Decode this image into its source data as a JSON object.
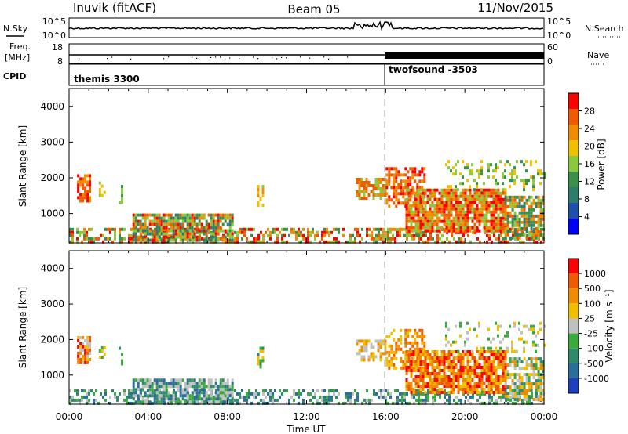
{
  "header": {
    "station": "Inuvik (fitACF)",
    "beam": "Beam 05",
    "date": "11/Nov/2015"
  },
  "strips": {
    "nsky_label": "N.Sky",
    "nsky_ticks": [
      "10^5",
      "10^0"
    ],
    "nsearch_label": "N.Search",
    "freq_label_1": "Freq.",
    "freq_label_2": "[MHz]",
    "freq_ticks": [
      "18",
      "8"
    ],
    "nave_label": "Nave",
    "nave_ticks": [
      "60",
      "0"
    ],
    "cpid_label": "CPID",
    "programs": [
      {
        "name": "themis 3300",
        "start_hour": 0,
        "end_hour": 16
      },
      {
        "name": "twofsound -3503",
        "start_hour": 16,
        "end_hour": 24
      }
    ]
  },
  "colors": {
    "power_scale": [
      "#0000ff",
      "#1f4fa8",
      "#2e7d6a",
      "#3a8f4a",
      "#8cc83c",
      "#f0c000",
      "#f08c00",
      "#f05a00",
      "#ff0000"
    ],
    "velocity_scale": [
      "#1f3fbf",
      "#2a6e9a",
      "#2e8a6a",
      "#3aaa3a",
      "#c0c0c0",
      "#f0c000",
      "#f08c00",
      "#f05a00",
      "#ff0000"
    ]
  },
  "chart_data": [
    {
      "type": "heatmap",
      "name": "power",
      "ylabel": "Slant Range [km]",
      "xlabel": "Time UT",
      "x_ticks": [
        "00:00",
        "04:00",
        "08:00",
        "12:00",
        "16:00",
        "20:00",
        "00:00"
      ],
      "xlim_hours": [
        0,
        24
      ],
      "ylim": [
        180,
        4500
      ],
      "y_ticks": [
        1000,
        2000,
        3000,
        4000
      ],
      "colorbar_label": "Power [dB]",
      "colorbar_ticks": [
        "28",
        "24",
        "20",
        "16",
        "12",
        "8",
        "4"
      ],
      "colorbar_range": [
        0,
        32
      ]
    },
    {
      "type": "heatmap",
      "name": "velocity",
      "ylabel": "Slant Range [km]",
      "xlabel": "Time UT",
      "x_ticks": [
        "00:00",
        "04:00",
        "08:00",
        "12:00",
        "16:00",
        "20:00",
        "00:00"
      ],
      "xlim_hours": [
        0,
        24
      ],
      "ylim": [
        180,
        4500
      ],
      "y_ticks": [
        1000,
        2000,
        3000,
        4000
      ],
      "colorbar_label": "Velocity [m s⁻¹]",
      "colorbar_ticks": [
        "1000",
        "500",
        "100",
        "25",
        "-25",
        "-100",
        "-500",
        "-1000"
      ]
    }
  ],
  "xaxis_title": "Time UT"
}
